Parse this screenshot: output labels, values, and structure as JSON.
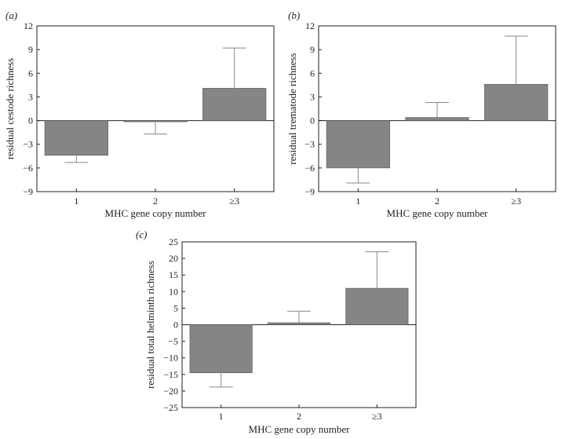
{
  "chart_data": [
    {
      "type": "bar",
      "panel_label": "(a)",
      "categories": [
        "1",
        "2",
        "≥3"
      ],
      "values": [
        -4.4,
        -0.1,
        4.1
      ],
      "error_bars": [
        -5.3,
        -1.7,
        9.2
      ],
      "xlabel": "MHC gene copy number",
      "ylabel": "residual cestode richness",
      "ylim": [
        -9,
        12
      ],
      "yticks": [
        "−9",
        "−6",
        "−3",
        "0",
        "3",
        "6",
        "9",
        "12"
      ]
    },
    {
      "type": "bar",
      "panel_label": "(b)",
      "categories": [
        "1",
        "2",
        "≥3"
      ],
      "values": [
        -6.0,
        0.4,
        4.6
      ],
      "error_bars": [
        -7.9,
        2.3,
        10.7
      ],
      "xlabel": "MHC gene copy number",
      "ylabel": "residual trematode richness",
      "ylim": [
        -9,
        12
      ],
      "yticks": [
        "−9",
        "−6",
        "−3",
        "0",
        "3",
        "6",
        "9",
        "12"
      ]
    },
    {
      "type": "bar",
      "panel_label": "(c)",
      "categories": [
        "1",
        "2",
        "≥3"
      ],
      "values": [
        -14.5,
        0.6,
        11.0
      ],
      "error_bars": [
        -18.8,
        4.1,
        22.0
      ],
      "xlabel": "MHC gene copy number",
      "ylabel": "residual total helminth richness",
      "ylim": [
        -25,
        25
      ],
      "yticks": [
        "−25",
        "−20",
        "−15",
        "−10",
        "−5",
        "0",
        "5",
        "10",
        "15",
        "20",
        "25"
      ]
    }
  ]
}
